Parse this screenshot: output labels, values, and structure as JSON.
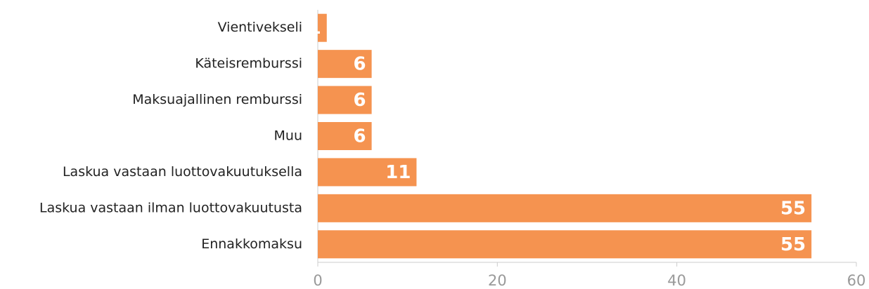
{
  "chart_data": {
    "type": "bar",
    "orientation": "horizontal",
    "categories": [
      "Vientivekseli",
      "Käteisremburssi",
      "Maksuajallinen remburssi",
      "Muu",
      "Laskua vastaan luottovakuutuksella",
      "Laskua vastaan ilman luottovakuutusta",
      "Ennakkomaksu"
    ],
    "values": [
      1,
      6,
      6,
      6,
      11,
      55,
      55
    ],
    "color": "#f59350",
    "xlim": [
      0,
      60
    ],
    "xticks": [
      0,
      20,
      40,
      60
    ],
    "grid": false
  }
}
